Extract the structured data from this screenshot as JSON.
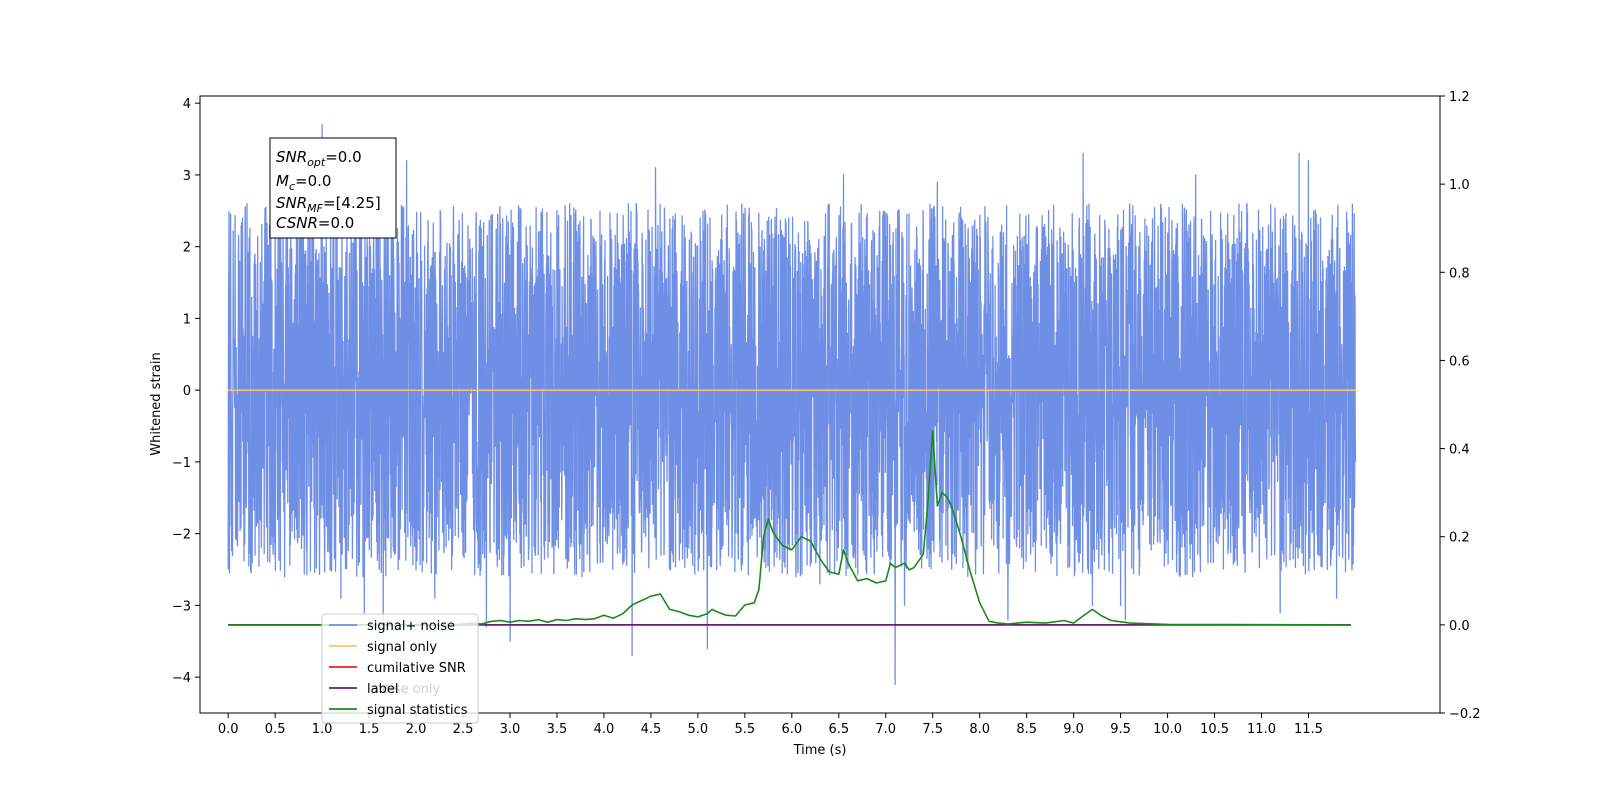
{
  "chart_data": {
    "type": "line",
    "xlabel": "Time (s)",
    "ylabel": "Whitened strain",
    "xlim": [
      -0.3,
      12.9
    ],
    "ylim": [
      -4.5,
      4.1
    ],
    "y2lim": [
      -0.2,
      1.2
    ],
    "x_ticks": [
      0.0,
      0.5,
      1.0,
      1.5,
      2.0,
      2.5,
      3.0,
      3.5,
      4.0,
      4.5,
      5.0,
      5.5,
      6.0,
      6.5,
      7.0,
      7.5,
      8.0,
      8.5,
      9.0,
      9.5,
      10.0,
      10.5,
      11.0,
      11.5
    ],
    "x_tick_labels": [
      "0.0",
      "0.5",
      "1.0",
      "1.5",
      "2.0",
      "2.5",
      "3.0",
      "3.5",
      "4.0",
      "4.5",
      "5.0",
      "5.5",
      "6.0",
      "6.5",
      "7.0",
      "7.5",
      "8.0",
      "8.5",
      "9.0",
      "9.5",
      "10.0",
      "10.5",
      "11.0",
      "11.5"
    ],
    "y_ticks": [
      -4,
      -3,
      -2,
      -1,
      0,
      1,
      2,
      3,
      4
    ],
    "y_tick_labels": [
      "−4",
      "−3",
      "−2",
      "−1",
      "0",
      "1",
      "2",
      "3",
      "4"
    ],
    "y2_ticks": [
      -0.2,
      0.0,
      0.2,
      0.4,
      0.6,
      0.8,
      1.0,
      1.2
    ],
    "y2_tick_labels": [
      "−0.2",
      "0.0",
      "0.2",
      "0.4",
      "0.6",
      "0.8",
      "1.0",
      "1.2"
    ],
    "annotation": {
      "line1_base": "SNR",
      "line1_sub": "opt",
      "line1_value": "=0.0",
      "line2_base": "M",
      "line2_sub": "c",
      "line2_value": "=0.0",
      "line3_base": "SNR",
      "line3_sub": "MF",
      "line3_value": "=[4.25]",
      "line4_base": "CSNR",
      "line4_value": "=0.0"
    },
    "legend": {
      "placement": "lower-left",
      "entries": [
        {
          "label": "signal+ noise",
          "color": "#6f8fe6"
        },
        {
          "label": "signal only",
          "color": "#ffc46a"
        },
        {
          "label": "cumilative SNR",
          "color": "#e8231f"
        },
        {
          "label": "label",
          "color": "#6a1b73"
        },
        {
          "label": "signal statistics",
          "color": "#1a8a1a"
        }
      ],
      "overlap_text": "noise only"
    },
    "series": [
      {
        "name": "signal+ noise",
        "color": "#6f8fe6",
        "axis": "left",
        "x_range": [
          0.0,
          12.0
        ],
        "amplitude_band": [
          -1.6,
          1.6
        ],
        "spikes": [
          {
            "x": 0.0,
            "y": 2.7
          },
          {
            "x": 0.0,
            "y": -2.5
          },
          {
            "x": 0.2,
            "y": 2.6
          },
          {
            "x": 0.55,
            "y": 2.9
          },
          {
            "x": 0.6,
            "y": -2.6
          },
          {
            "x": 1.0,
            "y": 3.7
          },
          {
            "x": 1.2,
            "y": -2.9
          },
          {
            "x": 1.4,
            "y": 3.5
          },
          {
            "x": 1.45,
            "y": -3.1
          },
          {
            "x": 1.65,
            "y": -3.2
          },
          {
            "x": 1.9,
            "y": 3.2
          },
          {
            "x": 2.2,
            "y": -2.9
          },
          {
            "x": 2.75,
            "y": -3.3
          },
          {
            "x": 3.0,
            "y": -3.5
          },
          {
            "x": 4.3,
            "y": -3.7
          },
          {
            "x": 4.55,
            "y": 3.1
          },
          {
            "x": 5.1,
            "y": -3.6
          },
          {
            "x": 6.3,
            "y": -2.7
          },
          {
            "x": 6.55,
            "y": 3.0
          },
          {
            "x": 7.1,
            "y": -4.1
          },
          {
            "x": 7.2,
            "y": -3.0
          },
          {
            "x": 7.55,
            "y": 2.9
          },
          {
            "x": 8.3,
            "y": -3.2
          },
          {
            "x": 9.1,
            "y": 3.3
          },
          {
            "x": 9.2,
            "y": -3.0
          },
          {
            "x": 9.5,
            "y": -3.0
          },
          {
            "x": 9.55,
            "y": -3.2
          },
          {
            "x": 10.3,
            "y": 3.0
          },
          {
            "x": 11.2,
            "y": -3.1
          },
          {
            "x": 11.4,
            "y": 3.3
          },
          {
            "x": 11.5,
            "y": 3.2
          },
          {
            "x": 11.8,
            "y": -2.9
          }
        ]
      },
      {
        "name": "signal only",
        "color": "#ffc46a",
        "axis": "left",
        "x": [
          0.0,
          12.0
        ],
        "y": [
          0.0,
          0.0
        ]
      },
      {
        "name": "label",
        "color": "#6a1b73",
        "axis": "right",
        "x": [
          0.0,
          11.95
        ],
        "y": [
          0.0,
          0.0
        ]
      },
      {
        "name": "signal statistics",
        "color": "#1a8a1a",
        "axis": "right",
        "x": [
          0.0,
          2.4,
          2.6,
          2.7,
          2.8,
          2.9,
          3.0,
          3.1,
          3.2,
          3.3,
          3.4,
          3.5,
          3.6,
          3.7,
          3.8,
          3.9,
          4.0,
          4.1,
          4.2,
          4.3,
          4.4,
          4.5,
          4.6,
          4.7,
          4.8,
          4.9,
          5.0,
          5.1,
          5.15,
          5.2,
          5.3,
          5.4,
          5.5,
          5.6,
          5.65,
          5.7,
          5.75,
          5.8,
          5.9,
          6.0,
          6.1,
          6.2,
          6.3,
          6.4,
          6.5,
          6.55,
          6.6,
          6.7,
          6.8,
          6.9,
          7.0,
          7.05,
          7.1,
          7.2,
          7.25,
          7.3,
          7.4,
          7.45,
          7.5,
          7.55,
          7.6,
          7.65,
          7.7,
          7.8,
          7.9,
          8.0,
          8.1,
          8.2,
          8.3,
          8.5,
          8.7,
          8.9,
          9.0,
          9.1,
          9.2,
          9.3,
          9.4,
          9.6,
          10.0,
          11.95
        ],
        "y": [
          0.0,
          0.0,
          0.004,
          0.002,
          0.008,
          0.01,
          0.006,
          0.01,
          0.008,
          0.012,
          0.006,
          0.012,
          0.01,
          0.014,
          0.012,
          0.014,
          0.022,
          0.015,
          0.025,
          0.045,
          0.055,
          0.065,
          0.07,
          0.035,
          0.03,
          0.022,
          0.018,
          0.025,
          0.035,
          0.03,
          0.022,
          0.02,
          0.045,
          0.05,
          0.08,
          0.2,
          0.24,
          0.21,
          0.18,
          0.17,
          0.2,
          0.19,
          0.15,
          0.12,
          0.115,
          0.17,
          0.14,
          0.1,
          0.105,
          0.095,
          0.1,
          0.14,
          0.13,
          0.14,
          0.125,
          0.13,
          0.16,
          0.28,
          0.44,
          0.27,
          0.3,
          0.29,
          0.27,
          0.2,
          0.12,
          0.05,
          0.008,
          0.004,
          0.002,
          0.006,
          0.004,
          0.01,
          0.004,
          0.02,
          0.035,
          0.02,
          0.01,
          0.004,
          0.001,
          0.0
        ]
      }
    ]
  }
}
